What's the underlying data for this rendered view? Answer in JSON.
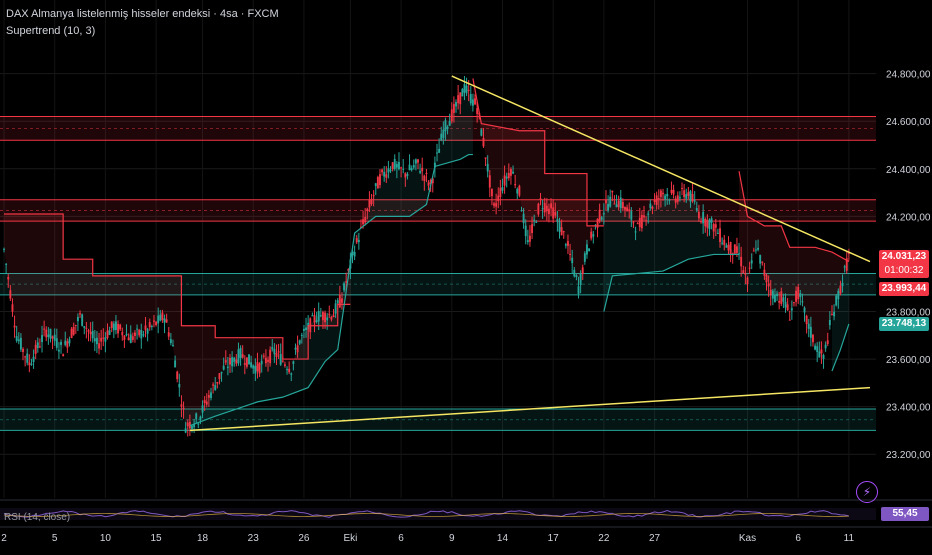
{
  "header": {
    "title": "DAX Almanya listelenmiş hisseler endeksi · 4sa · FXCM",
    "indicator": "Supertrend (10, 3)"
  },
  "chart_data": {
    "type": "candlestick",
    "symbol": "DAX Almanya listelenmiş hisseler endeksi",
    "timeframe": "4sa",
    "source": "FXCM",
    "ylim": [
      23100,
      24950
    ],
    "y_ticks": [
      {
        "value": 24800,
        "label": "24.800,00"
      },
      {
        "value": 24600,
        "label": "24.600,00"
      },
      {
        "value": 24400,
        "label": "24.400,00"
      },
      {
        "value": 24200,
        "label": "24.200,00"
      },
      {
        "value": 23800,
        "label": "23.800,00"
      },
      {
        "value": 23600,
        "label": "23.600,00"
      },
      {
        "value": 23400,
        "label": "23.400,00"
      },
      {
        "value": 23200,
        "label": "23.200,00"
      }
    ],
    "x_labels": [
      {
        "label": "2",
        "i": 0
      },
      {
        "label": "5",
        "i": 12
      },
      {
        "label": "10",
        "i": 24
      },
      {
        "label": "15",
        "i": 36
      },
      {
        "label": "18",
        "i": 47
      },
      {
        "label": "23",
        "i": 59
      },
      {
        "label": "26",
        "i": 71
      },
      {
        "label": "Eki",
        "i": 82
      },
      {
        "label": "6",
        "i": 94
      },
      {
        "label": "9",
        "i": 106
      },
      {
        "label": "14",
        "i": 118
      },
      {
        "label": "17",
        "i": 130
      },
      {
        "label": "22",
        "i": 142
      },
      {
        "label": "27",
        "i": 154
      },
      {
        "label": "Kas",
        "i": 176
      },
      {
        "label": "6",
        "i": 188
      },
      {
        "label": "11",
        "i": 200
      }
    ],
    "x_range": [
      0,
      205
    ],
    "price_path": [
      [
        0,
        24060
      ],
      [
        3,
        23700
      ],
      [
        6,
        23580
      ],
      [
        10,
        23720
      ],
      [
        14,
        23640
      ],
      [
        18,
        23780
      ],
      [
        22,
        23660
      ],
      [
        26,
        23740
      ],
      [
        30,
        23690
      ],
      [
        34,
        23720
      ],
      [
        38,
        23780
      ],
      [
        40,
        23650
      ],
      [
        43,
        23320
      ],
      [
        46,
        23350
      ],
      [
        49,
        23460
      ],
      [
        52,
        23560
      ],
      [
        56,
        23620
      ],
      [
        60,
        23560
      ],
      [
        64,
        23630
      ],
      [
        68,
        23560
      ],
      [
        70,
        23680
      ],
      [
        74,
        23780
      ],
      [
        78,
        23790
      ],
      [
        80,
        23860
      ],
      [
        83,
        24060
      ],
      [
        86,
        24220
      ],
      [
        89,
        24360
      ],
      [
        92,
        24420
      ],
      [
        95,
        24380
      ],
      [
        98,
        24420
      ],
      [
        101,
        24330
      ],
      [
        104,
        24560
      ],
      [
        107,
        24660
      ],
      [
        109,
        24740
      ],
      [
        112,
        24660
      ],
      [
        114,
        24460
      ],
      [
        116,
        24230
      ],
      [
        118,
        24330
      ],
      [
        120,
        24400
      ],
      [
        122,
        24300
      ],
      [
        124,
        24080
      ],
      [
        127,
        24260
      ],
      [
        130,
        24220
      ],
      [
        133,
        24100
      ],
      [
        136,
        23900
      ],
      [
        138,
        24060
      ],
      [
        141,
        24200
      ],
      [
        144,
        24280
      ],
      [
        147,
        24240
      ],
      [
        150,
        24150
      ],
      [
        153,
        24240
      ],
      [
        156,
        24300
      ],
      [
        159,
        24280
      ],
      [
        162,
        24300
      ],
      [
        165,
        24200
      ],
      [
        168,
        24160
      ],
      [
        171,
        24080
      ],
      [
        174,
        24040
      ],
      [
        176,
        23920
      ],
      [
        178,
        24080
      ],
      [
        180,
        23960
      ],
      [
        182,
        23870
      ],
      [
        184,
        23860
      ],
      [
        186,
        23790
      ],
      [
        188,
        23880
      ],
      [
        190,
        23760
      ],
      [
        192,
        23660
      ],
      [
        194,
        23600
      ],
      [
        196,
        23780
      ],
      [
        198,
        23900
      ],
      [
        200,
        24031
      ]
    ],
    "supertrend": [
      {
        "trend": "down",
        "pts": [
          [
            0,
            24210
          ],
          [
            14,
            24210
          ],
          [
            14,
            24020
          ],
          [
            21,
            24020
          ],
          [
            21,
            23950
          ],
          [
            42,
            23950
          ],
          [
            42,
            23740
          ],
          [
            50,
            23740
          ],
          [
            50,
            23690
          ],
          [
            66,
            23690
          ],
          [
            66,
            23600
          ],
          [
            72,
            23600
          ],
          [
            72,
            23740
          ],
          [
            79,
            23740
          ],
          [
            79,
            23830
          ],
          [
            82,
            23830
          ]
        ]
      },
      {
        "trend": "up",
        "pts": [
          [
            44,
            23320
          ],
          [
            50,
            23360
          ],
          [
            60,
            23420
          ],
          [
            66,
            23440
          ],
          [
            72,
            23480
          ],
          [
            76,
            23590
          ],
          [
            79,
            23640
          ],
          [
            83,
            24130
          ],
          [
            88,
            24200
          ],
          [
            96,
            24200
          ],
          [
            100,
            24250
          ],
          [
            102,
            24410
          ],
          [
            108,
            24440
          ],
          [
            110,
            24460
          ],
          [
            111,
            24460
          ]
        ]
      },
      {
        "trend": "down",
        "pts": [
          [
            111,
            24780
          ],
          [
            113,
            24590
          ],
          [
            122,
            24560
          ],
          [
            128,
            24560
          ],
          [
            128,
            24380
          ],
          [
            138,
            24380
          ],
          [
            138,
            24160
          ],
          [
            142,
            24160
          ]
        ]
      },
      {
        "trend": "up",
        "pts": [
          [
            142,
            23800
          ],
          [
            144,
            23950
          ],
          [
            150,
            23960
          ],
          [
            156,
            23970
          ],
          [
            162,
            24020
          ],
          [
            168,
            24040
          ],
          [
            172,
            24040
          ],
          [
            174,
            24040
          ]
        ]
      },
      {
        "trend": "down",
        "pts": [
          [
            174,
            24390
          ],
          [
            176,
            24200
          ],
          [
            180,
            24160
          ],
          [
            184,
            24160
          ],
          [
            186,
            24070
          ],
          [
            192,
            24070
          ],
          [
            196,
            24050
          ],
          [
            200,
            24010
          ]
        ]
      },
      {
        "trend": "up",
        "pts": [
          [
            196,
            23550
          ],
          [
            198,
            23640
          ],
          [
            200,
            23748
          ]
        ]
      }
    ],
    "zones": [
      {
        "type": "resistance",
        "low": 24520,
        "high": 24620
      },
      {
        "type": "resistance",
        "low": 24180,
        "high": 24270
      },
      {
        "type": "support",
        "low": 23870,
        "high": 23960
      },
      {
        "type": "support",
        "low": 23300,
        "high": 23390
      }
    ],
    "trendlines": [
      {
        "from": [
          106,
          24790
        ],
        "to": [
          205,
          24010
        ]
      },
      {
        "from": [
          44,
          23300
        ],
        "to": [
          205,
          23480
        ]
      }
    ],
    "badges": [
      {
        "label": "24.031,23",
        "sub": "01:00:32",
        "value": 24031,
        "color": "#f23645"
      },
      {
        "label": "23.993,44",
        "value": 23993,
        "color": "#f23645"
      },
      {
        "label": "23.748,13",
        "value": 23748,
        "color": "#26a69a"
      }
    ],
    "rsi": {
      "label": "RSI (14, close)",
      "value": "55,45"
    }
  },
  "colors": {
    "up": "#26a69a",
    "down": "#f23645",
    "trendline": "#f5e663",
    "support_zone": "#26a69a",
    "resistance_zone": "#f23645",
    "rsi_accent": "#7e57c2"
  },
  "icons": {
    "alert": "lightning-bolt-icon"
  }
}
